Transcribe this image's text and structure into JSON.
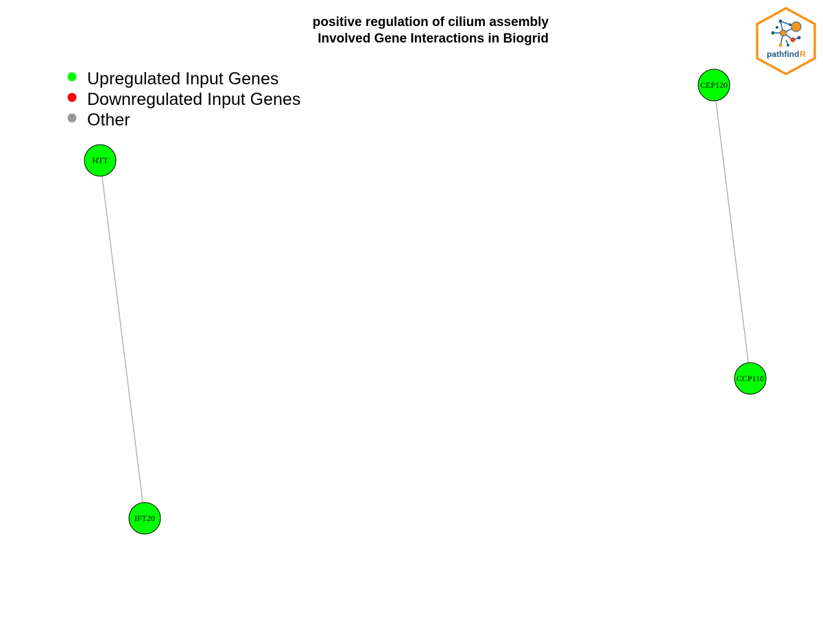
{
  "title": {
    "line1": "positive regulation of cilium assembly",
    "line2": "Involved Gene Interactions in Biogrid"
  },
  "legend": {
    "items": [
      {
        "label": "Upregulated Input Genes",
        "color": "#00ff00"
      },
      {
        "label": "Downregulated Input Genes",
        "color": "#ff0000"
      },
      {
        "label": "Other",
        "color": "#999999"
      }
    ]
  },
  "network": {
    "nodes": [
      {
        "id": "HTT",
        "label": "HTT",
        "status": "upregulated"
      },
      {
        "id": "IFT20",
        "label": "IFT20",
        "status": "upregulated"
      },
      {
        "id": "CEP120",
        "label": "CEP120",
        "status": "upregulated"
      },
      {
        "id": "CCP110",
        "label": "CCP110",
        "status": "upregulated"
      }
    ],
    "edges": [
      {
        "source": "HTT",
        "target": "IFT20"
      },
      {
        "source": "CEP120",
        "target": "CCP110"
      }
    ]
  },
  "colors": {
    "upregulated": "#00ff00",
    "downregulated": "#ff0000",
    "other": "#999999",
    "edge": "#a0a0a0",
    "logo_border": "#f7941d",
    "logo_blue": "#1f5f8b",
    "logo_orange": "#f7941d"
  },
  "logo": {
    "text_main": "pathfind",
    "text_accent": "R"
  }
}
